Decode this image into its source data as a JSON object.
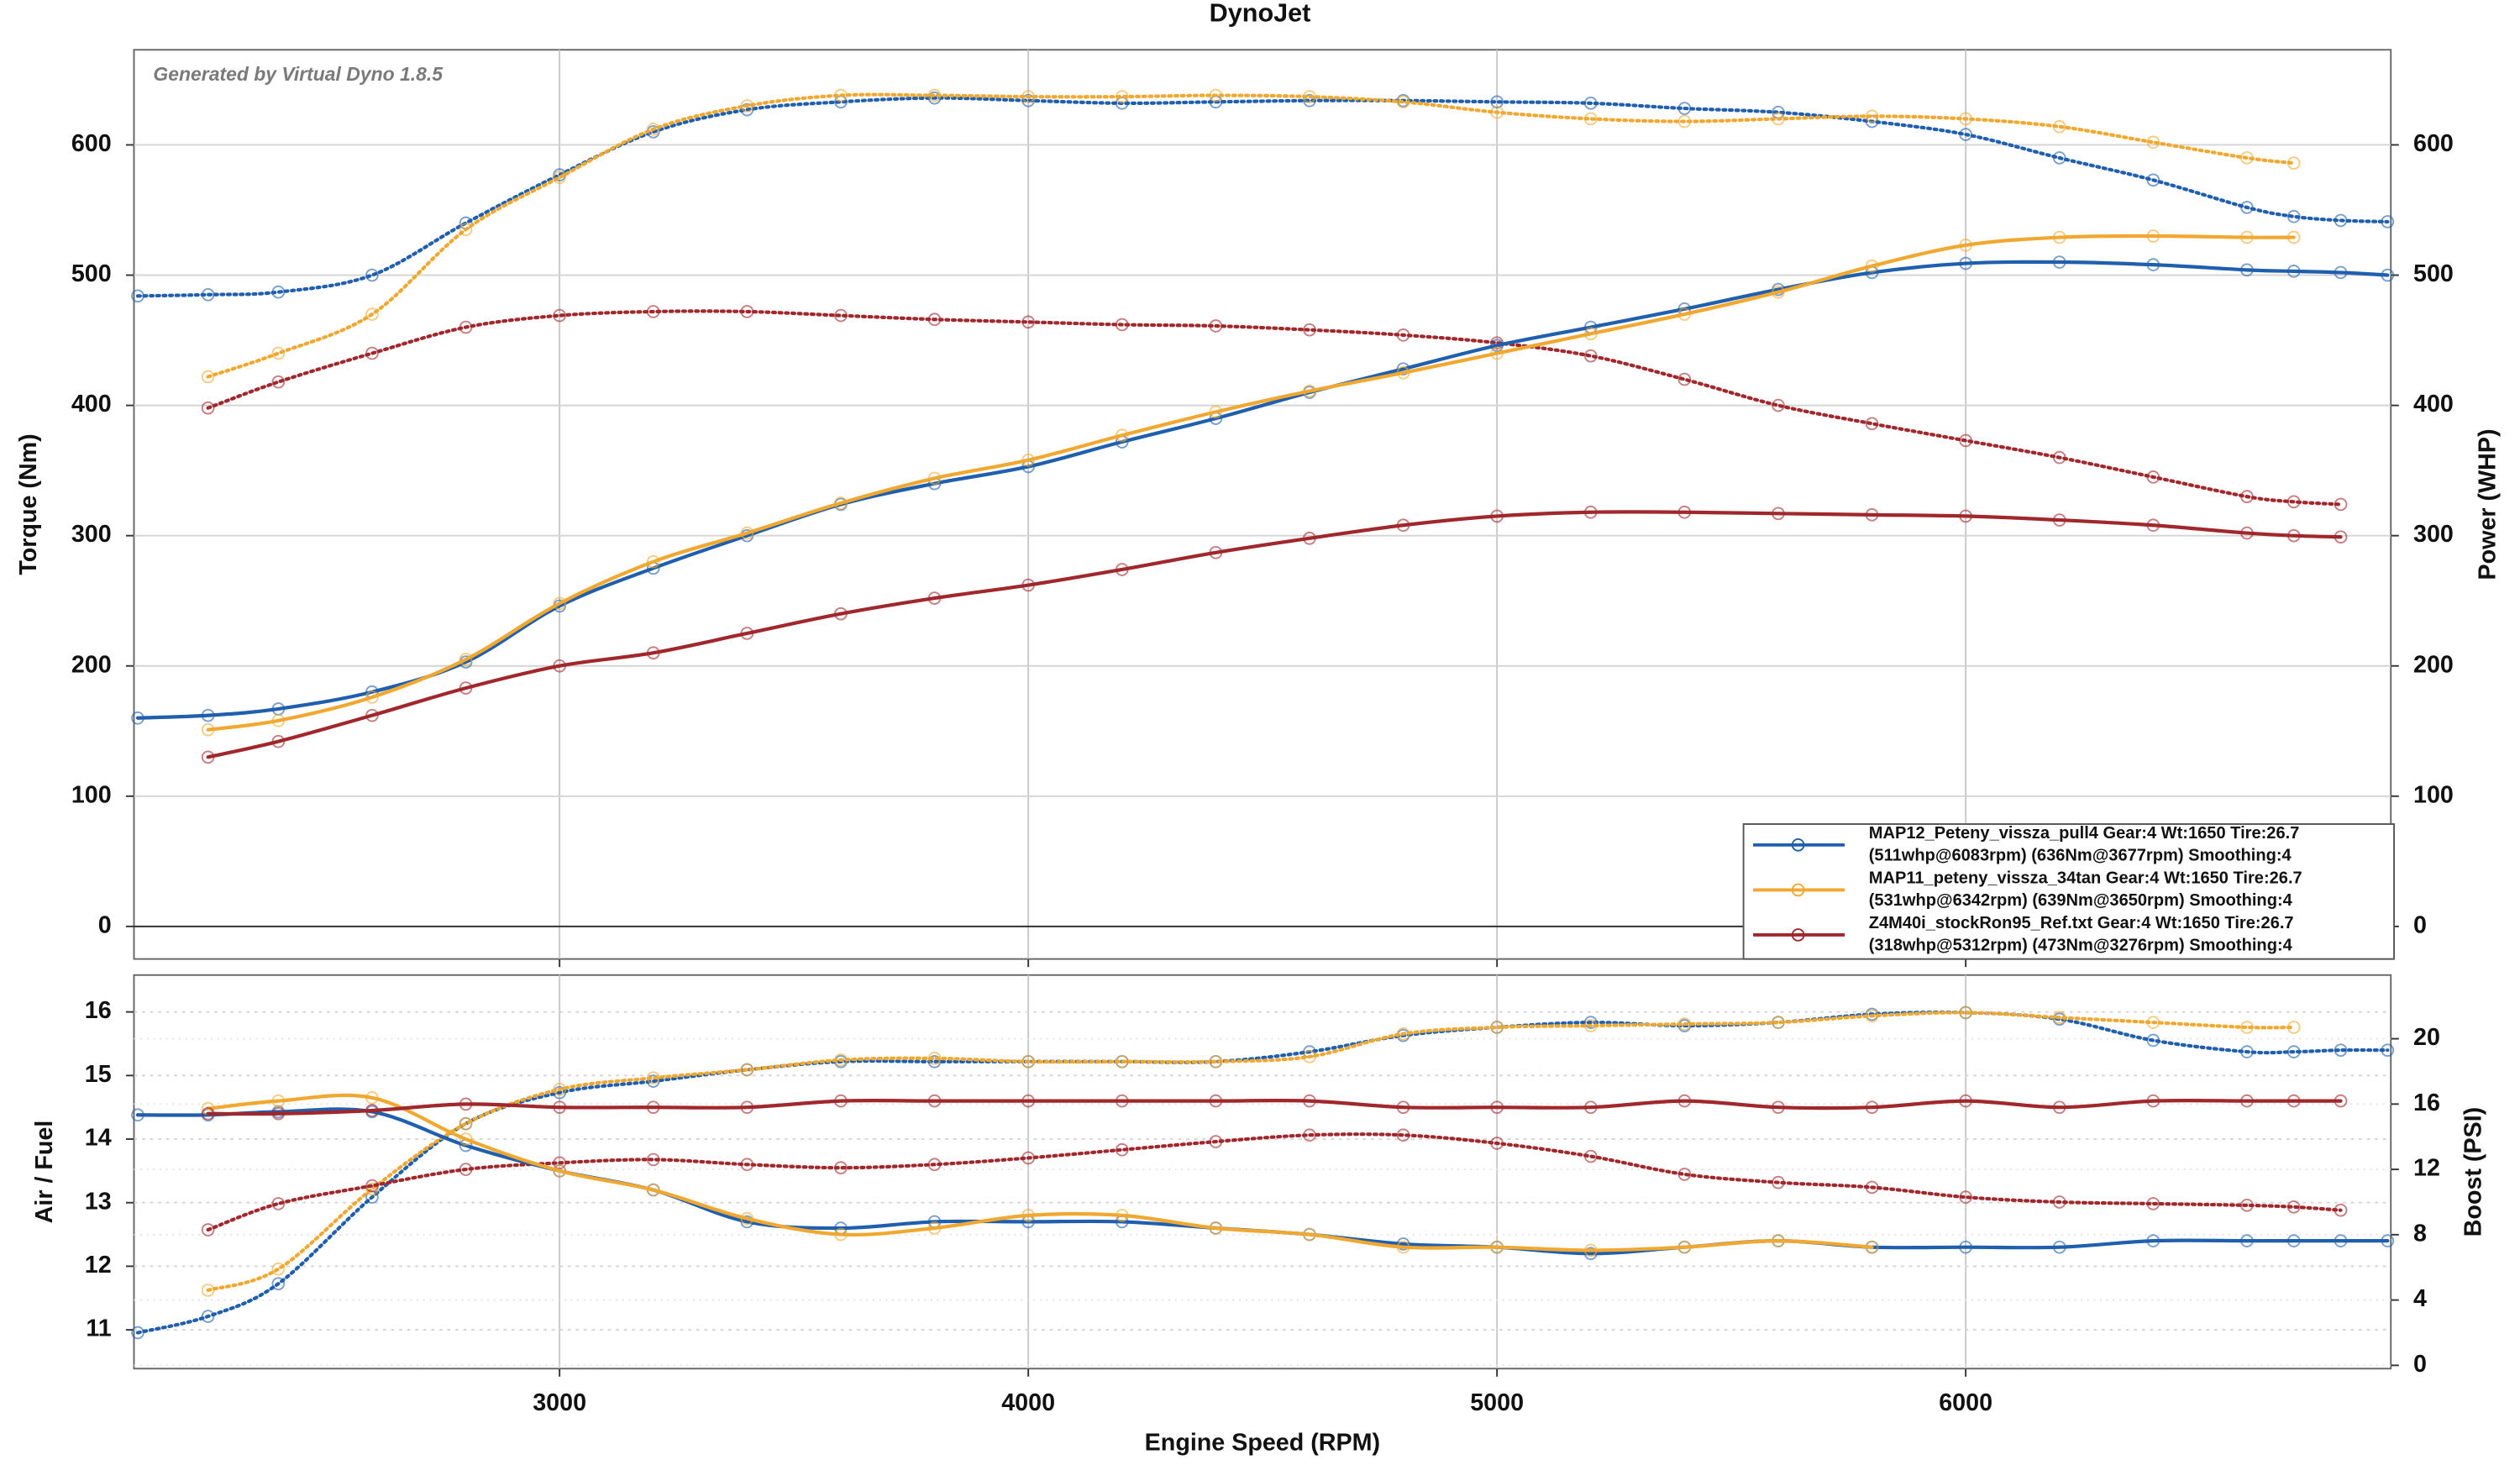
{
  "chart_data": [
    {
      "type": "line",
      "title": "DynoJet",
      "annotation": "Generated by Virtual Dyno 1.8.5",
      "y_label": "Torque (Nm)",
      "y2_label": "Power (WHP)",
      "x": [
        2100,
        2250,
        2400,
        2600,
        2800,
        3000,
        3200,
        3400,
        3600,
        3800,
        4000,
        4200,
        4400,
        4600,
        4800,
        5000,
        5200,
        5400,
        5600,
        5800,
        6000,
        6200,
        6400,
        6600,
        6700,
        6800,
        6900
      ],
      "xlim": [
        2092,
        6907
      ],
      "xticks": [
        3000,
        4000,
        5000,
        6000
      ],
      "ylim": [
        -25,
        673
      ],
      "yticks": [
        0,
        100,
        200,
        300,
        400,
        500,
        600
      ],
      "y2lim": [
        -25,
        673
      ],
      "y2ticks": [
        0,
        100,
        200,
        300,
        400,
        500,
        600
      ],
      "grid": true,
      "legend_position": "lower right",
      "legend": [
        {
          "name": "MAP12_Peteny_vissza_pull4 Gear:4 Wt:1650  Tire:26.7",
          "detail": "(511whp@6083rpm)  (636Nm@3677rpm)  Smoothing:4",
          "color": "#1f5fad"
        },
        {
          "name": "MAP11_peteny_vissza_34tan Gear:4 Wt:1650  Tire:26.7",
          "detail": "(531whp@6342rpm)  (639Nm@3650rpm)  Smoothing:4",
          "color": "#f0a830"
        },
        {
          "name": "Z4M40i_stockRon95_Ref.txt Gear:4 Wt:1650 Tire:26.7",
          "detail": "(318whp@5312rpm)  (473Nm@3276rpm)  Smoothing:4",
          "color": "#a0282d"
        }
      ],
      "series": [
        {
          "color": "#1f5fad",
          "style": "dotted",
          "axis": "y",
          "values": [
            484,
            485,
            487,
            500,
            540,
            577,
            610,
            627,
            633,
            636,
            634,
            632,
            633,
            634,
            634,
            633,
            632,
            628,
            625,
            618,
            608,
            590,
            573,
            552,
            545,
            542,
            541
          ]
        },
        {
          "color": "#f0a830",
          "style": "dotted",
          "axis": "y",
          "values": [
            null,
            422,
            440,
            470,
            535,
            575,
            612,
            630,
            638,
            638,
            637,
            637,
            638,
            637,
            633,
            625,
            620,
            618,
            620,
            622,
            620,
            614,
            602,
            590,
            586,
            null,
            null
          ]
        },
        {
          "color": "#a0282d",
          "style": "dotted",
          "axis": "y",
          "values": [
            null,
            398,
            418,
            440,
            460,
            469,
            472,
            472,
            469,
            466,
            464,
            462,
            461,
            458,
            454,
            448,
            438,
            420,
            400,
            386,
            373,
            360,
            345,
            330,
            326,
            324,
            null
          ]
        },
        {
          "color": "#1f5fad",
          "style": "solid",
          "axis": "y2",
          "values": [
            160,
            162,
            167,
            180,
            203,
            246,
            275,
            300,
            324,
            340,
            353,
            372,
            390,
            410,
            428,
            446,
            460,
            474,
            489,
            502,
            509,
            510,
            508,
            504,
            503,
            502,
            500
          ]
        },
        {
          "color": "#f0a830",
          "style": "solid",
          "axis": "y2",
          "values": [
            null,
            151,
            158,
            176,
            205,
            248,
            280,
            302,
            325,
            344,
            358,
            377,
            395,
            411,
            425,
            440,
            455,
            470,
            487,
            507,
            523,
            529,
            530,
            529,
            529,
            null,
            null
          ]
        },
        {
          "color": "#a0282d",
          "style": "solid",
          "axis": "y2",
          "values": [
            null,
            130,
            142,
            162,
            183,
            200,
            210,
            225,
            240,
            252,
            262,
            274,
            287,
            298,
            308,
            315,
            318,
            318,
            317,
            316,
            315,
            312,
            308,
            302,
            300,
            299,
            null
          ]
        }
      ]
    },
    {
      "type": "line",
      "x_label": "Engine Speed (RPM)",
      "y_label": "Air / Fuel",
      "y2_label": "Boost (PSI)",
      "x": [
        2100,
        2250,
        2400,
        2600,
        2800,
        3000,
        3200,
        3400,
        3600,
        3800,
        4000,
        4200,
        4400,
        4600,
        4800,
        5000,
        5200,
        5400,
        5600,
        5800,
        6000,
        6200,
        6400,
        6600,
        6700,
        6800,
        6900
      ],
      "xlim": [
        2092,
        6907
      ],
      "xticks": [
        3000,
        4000,
        5000,
        6000
      ],
      "ylim": [
        10.39,
        16.58
      ],
      "yticks": [
        11,
        12,
        13,
        14,
        15,
        16
      ],
      "y2lim": [
        -0.2,
        23.9
      ],
      "y2ticks": [
        0,
        4,
        8,
        12,
        16,
        20
      ],
      "grid": true,
      "series": [
        {
          "color": "#1f5fad",
          "style": "dotted",
          "axis": "y2",
          "values": [
            2.0,
            3.0,
            5.0,
            10.3,
            14.8,
            16.7,
            17.4,
            18.1,
            18.6,
            18.6,
            18.6,
            18.6,
            18.6,
            19.2,
            20.2,
            20.7,
            21.0,
            20.8,
            21.0,
            21.5,
            21.6,
            21.2,
            19.9,
            19.2,
            19.2,
            19.3,
            19.3
          ]
        },
        {
          "color": "#f0a830",
          "style": "dotted",
          "axis": "y2",
          "values": [
            null,
            4.6,
            5.9,
            10.8,
            14.8,
            16.9,
            17.6,
            18.1,
            18.7,
            18.8,
            18.6,
            18.6,
            18.6,
            18.9,
            20.3,
            20.7,
            20.8,
            20.9,
            21.0,
            21.4,
            21.6,
            21.3,
            21.0,
            20.7,
            20.7,
            null,
            null
          ]
        },
        {
          "color": "#a0282d",
          "style": "dotted",
          "axis": "y2",
          "values": [
            null,
            8.3,
            9.9,
            11.0,
            12.0,
            12.4,
            12.6,
            12.3,
            12.1,
            12.3,
            12.7,
            13.2,
            13.7,
            14.1,
            14.1,
            13.6,
            12.8,
            11.7,
            11.2,
            10.9,
            10.3,
            10.0,
            9.9,
            9.8,
            9.7,
            9.5,
            null
          ]
        },
        {
          "color": "#1f5fad",
          "style": "solid",
          "axis": "y",
          "values": [
            14.38,
            14.38,
            14.43,
            14.43,
            13.9,
            13.5,
            13.2,
            12.7,
            12.6,
            12.7,
            12.7,
            12.7,
            12.6,
            12.5,
            12.35,
            12.3,
            12.2,
            12.3,
            12.4,
            12.3,
            12.3,
            12.3,
            12.4,
            12.4,
            12.4,
            12.4,
            12.4
          ]
        },
        {
          "color": "#f0a830",
          "style": "solid",
          "axis": "y",
          "values": [
            null,
            14.48,
            14.6,
            14.65,
            14.0,
            13.5,
            13.2,
            12.75,
            12.5,
            12.6,
            12.8,
            12.8,
            12.6,
            12.5,
            12.3,
            12.3,
            12.25,
            12.3,
            12.4,
            12.3,
            null,
            null,
            null,
            null,
            null,
            null,
            null
          ]
        },
        {
          "color": "#a0282d",
          "style": "solid",
          "axis": "y",
          "values": [
            null,
            14.4,
            14.4,
            14.45,
            14.55,
            14.5,
            14.5,
            14.5,
            14.6,
            14.6,
            14.6,
            14.6,
            14.6,
            14.6,
            14.5,
            14.5,
            14.5,
            14.6,
            14.5,
            14.5,
            14.6,
            14.5,
            14.6,
            14.6,
            14.6,
            14.6,
            null
          ]
        }
      ]
    }
  ]
}
